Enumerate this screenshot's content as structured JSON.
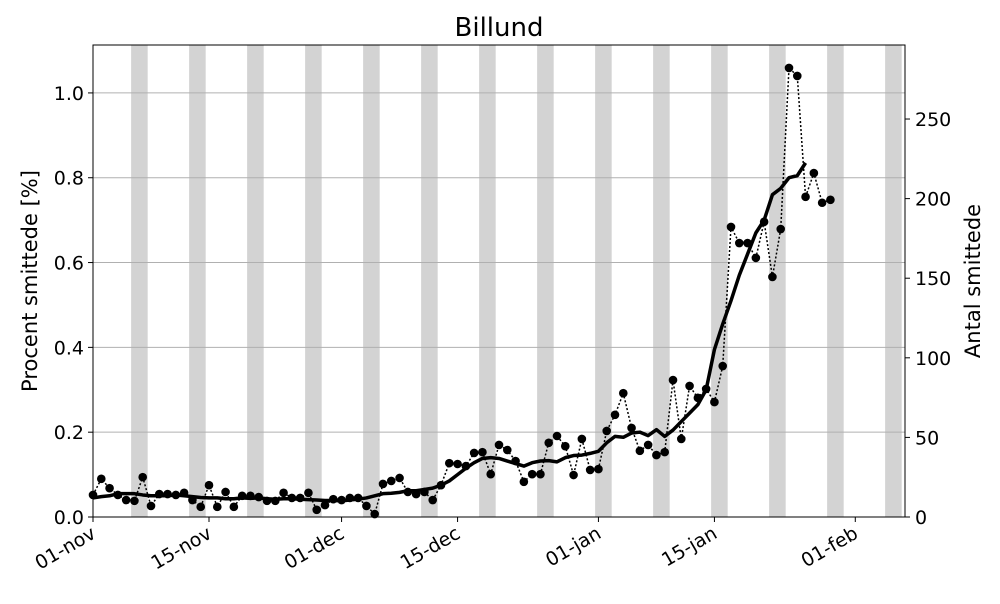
{
  "chart_data": {
    "type": "line",
    "title": "Billund",
    "ylabel": "Procent smittede [%]",
    "y2label": "Antal smittede",
    "x": [
      "01-nov",
      "02-nov",
      "03-nov",
      "04-nov",
      "05-nov",
      "06-nov",
      "07-nov",
      "08-nov",
      "09-nov",
      "10-nov",
      "11-nov",
      "12-nov",
      "13-nov",
      "14-nov",
      "15-nov",
      "16-nov",
      "17-nov",
      "18-nov",
      "19-nov",
      "20-nov",
      "21-nov",
      "22-nov",
      "23-nov",
      "24-nov",
      "25-nov",
      "26-nov",
      "27-nov",
      "28-nov",
      "29-nov",
      "30-nov",
      "01-dec",
      "02-dec",
      "03-dec",
      "04-dec",
      "05-dec",
      "06-dec",
      "07-dec",
      "08-dec",
      "09-dec",
      "10-dec",
      "11-dec",
      "12-dec",
      "13-dec",
      "14-dec",
      "15-dec",
      "16-dec",
      "17-dec",
      "18-dec",
      "19-dec",
      "20-dec",
      "21-dec",
      "22-dec",
      "23-dec",
      "24-dec",
      "25-dec",
      "26-dec",
      "27-dec",
      "28-dec",
      "29-dec",
      "30-dec",
      "31-dec",
      "01-jan",
      "02-jan",
      "03-jan",
      "04-jan",
      "05-jan",
      "06-jan",
      "07-jan",
      "08-jan",
      "09-jan",
      "10-jan",
      "11-jan",
      "12-jan",
      "13-jan",
      "14-jan",
      "15-jan",
      "16-jan",
      "17-jan",
      "18-jan",
      "19-jan",
      "20-jan",
      "21-jan",
      "22-jan",
      "23-jan",
      "24-jan",
      "25-jan",
      "26-jan",
      "27-jan",
      "28-jan",
      "29-jan",
      "30-jan",
      "31-jan",
      "01-feb",
      "02-feb",
      "03-feb",
      "04-feb",
      "05-feb",
      "06-feb",
      "07-feb"
    ],
    "xlim": [
      "01-nov",
      "07-feb"
    ],
    "xticks": [
      "01-nov",
      "15-nov",
      "01-dec",
      "15-dec",
      "01-jan",
      "15-jan",
      "01-feb"
    ],
    "ylim": [
      0,
      1.113
    ],
    "yticks": [
      {
        "value": 0,
        "label": "0.0"
      },
      0.2,
      0.4,
      0.6,
      0.8,
      {
        "value": 1,
        "label": "1.0"
      }
    ],
    "y2lim": [
      0,
      296.5
    ],
    "y2ticks": [
      0,
      50,
      100,
      150,
      200,
      250
    ],
    "grid": true,
    "series": [
      {
        "color": "#000000",
        "style": "dotted-markers",
        "values": [
          0.052,
          0.09,
          0.068,
          0.052,
          0.04,
          0.038,
          0.094,
          0.026,
          0.054,
          0.054,
          0.052,
          0.057,
          0.04,
          0.024,
          0.075,
          0.024,
          0.059,
          0.024,
          0.05,
          0.05,
          0.047,
          0.038,
          0.038,
          0.057,
          0.045,
          0.045,
          0.057,
          0.017,
          0.028,
          0.042,
          0.04,
          0.045,
          0.045,
          0.026,
          0.007,
          0.078,
          0.085,
          0.092,
          0.059,
          0.054,
          0.059,
          0.04,
          0.075,
          0.127,
          0.125,
          0.12,
          0.151,
          0.153,
          0.101,
          0.17,
          0.158,
          0.132,
          0.083,
          0.101,
          0.101,
          0.175,
          0.191,
          0.167,
          0.099,
          0.184,
          0.111,
          0.113,
          0.203,
          0.241,
          0.292,
          0.21,
          0.156,
          0.17,
          0.146,
          0.153,
          0.323,
          0.184,
          0.309,
          0.281,
          0.302,
          0.271,
          0.356,
          0.684,
          0.646,
          0.646,
          0.611,
          0.696,
          0.566,
          0.679,
          1.059,
          1.04,
          0.755,
          0.811,
          0.741,
          0.748,
          null,
          null,
          null,
          null,
          null,
          null,
          null,
          null,
          null
        ]
      },
      {
        "color": "#000000",
        "style": "thick-line",
        "values": [
          0.045,
          0.048,
          0.05,
          0.055,
          0.055,
          0.055,
          0.052,
          0.05,
          0.05,
          0.05,
          0.052,
          0.05,
          0.048,
          0.046,
          0.045,
          0.045,
          0.043,
          0.043,
          0.045,
          0.044,
          0.045,
          0.043,
          0.042,
          0.043,
          0.043,
          0.042,
          0.041,
          0.04,
          0.039,
          0.039,
          0.038,
          0.04,
          0.042,
          0.045,
          0.05,
          0.055,
          0.056,
          0.058,
          0.062,
          0.062,
          0.065,
          0.068,
          0.075,
          0.085,
          0.1,
          0.115,
          0.128,
          0.138,
          0.14,
          0.138,
          0.132,
          0.126,
          0.12,
          0.128,
          0.132,
          0.133,
          0.13,
          0.14,
          0.145,
          0.146,
          0.15,
          0.155,
          0.175,
          0.19,
          0.188,
          0.198,
          0.2,
          0.192,
          0.206,
          0.19,
          0.205,
          0.225,
          0.245,
          0.265,
          0.3,
          0.395,
          0.455,
          0.51,
          0.57,
          0.62,
          0.67,
          0.7,
          0.76,
          0.775,
          0.8,
          0.805,
          0.835,
          null,
          null,
          null,
          null,
          null,
          null,
          null,
          null,
          null,
          null,
          null,
          null
        ]
      }
    ]
  }
}
